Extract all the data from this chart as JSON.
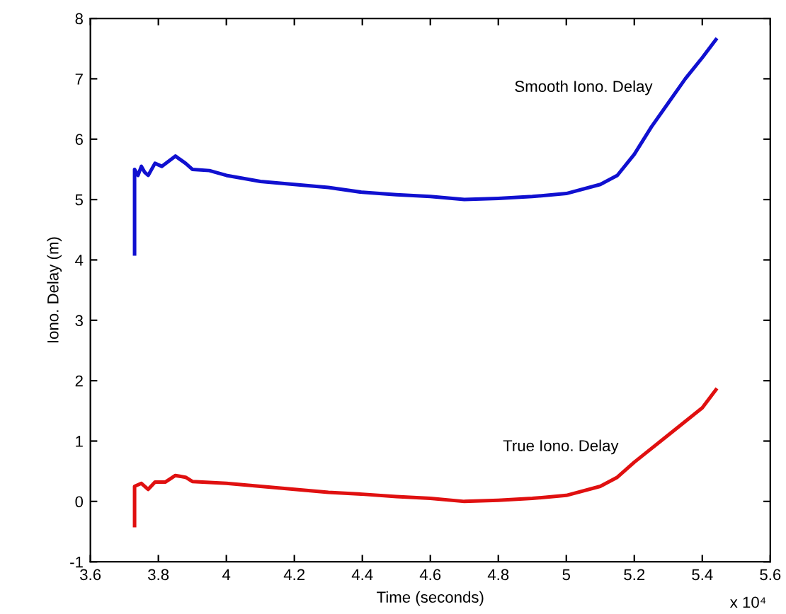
{
  "chart_data": {
    "type": "line",
    "xlabel": "Time (seconds)",
    "ylabel": "Iono. Delay (m)",
    "xlim": [
      3.6,
      5.6
    ],
    "xticks": [
      3.6,
      3.8,
      4,
      4.2,
      4.4,
      4.6,
      4.8,
      5,
      5.2,
      5.4,
      5.6
    ],
    "ylim": [
      -1,
      8
    ],
    "yticks": [
      -1,
      0,
      1,
      2,
      3,
      4,
      5,
      6,
      7,
      8
    ],
    "grid": false,
    "marker": "none",
    "line_style": "solid",
    "series": [
      {
        "name": "Smooth Iono. Delay",
        "color": "#1010d0",
        "x": [
          3.73,
          3.73,
          3.74,
          3.75,
          3.76,
          3.77,
          3.79,
          3.81,
          3.85,
          3.88,
          3.9,
          3.95,
          4.0,
          4.1,
          4.2,
          4.3,
          4.4,
          4.5,
          4.6,
          4.7,
          4.8,
          4.9,
          5.0,
          5.1,
          5.15,
          5.2,
          5.25,
          5.3,
          5.35,
          5.4,
          5.44
        ],
        "values": [
          4.1,
          5.5,
          5.4,
          5.55,
          5.45,
          5.4,
          5.6,
          5.55,
          5.72,
          5.6,
          5.5,
          5.48,
          5.4,
          5.3,
          5.25,
          5.2,
          5.12,
          5.08,
          5.05,
          5.0,
          5.02,
          5.05,
          5.1,
          5.25,
          5.4,
          5.75,
          6.2,
          6.6,
          7.0,
          7.35,
          7.65
        ]
      },
      {
        "name": "True Iono. Delay",
        "color": "#e01010",
        "x": [
          3.73,
          3.73,
          3.75,
          3.77,
          3.79,
          3.82,
          3.85,
          3.88,
          3.9,
          4.0,
          4.1,
          4.2,
          4.3,
          4.4,
          4.5,
          4.6,
          4.7,
          4.8,
          4.9,
          5.0,
          5.1,
          5.15,
          5.2,
          5.3,
          5.4,
          5.44
        ],
        "values": [
          -0.4,
          0.25,
          0.3,
          0.2,
          0.32,
          0.32,
          0.43,
          0.4,
          0.33,
          0.3,
          0.25,
          0.2,
          0.15,
          0.12,
          0.08,
          0.05,
          0.0,
          0.02,
          0.05,
          0.1,
          0.25,
          0.4,
          0.65,
          1.1,
          1.55,
          1.85
        ]
      }
    ],
    "annotations": [
      "x 10⁴"
    ]
  }
}
